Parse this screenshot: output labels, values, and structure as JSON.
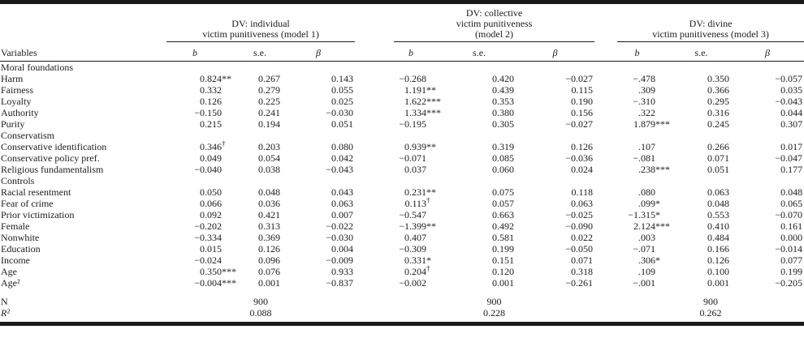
{
  "table": {
    "variables_header": "Variables",
    "groups": [
      {
        "title": "DV: individual\nvictim punitiveness (model 1)"
      },
      {
        "title": "DV: collective\nvictim punitiveness\n(model 2)"
      },
      {
        "title": "DV: divine\nvictim punitiveness (model 3)"
      }
    ],
    "stat_headers": [
      "b",
      "s.e.",
      "β"
    ],
    "rows": [
      {
        "type": "section",
        "label": "Moral foundations"
      },
      {
        "type": "data",
        "label": "Harm",
        "cells": [
          "0.824**",
          "0.267",
          "0.143",
          "−0.268",
          "0.420",
          "−0.027",
          "−.478",
          "0.350",
          "−0.057"
        ]
      },
      {
        "type": "data",
        "label": "Fairness",
        "cells": [
          "0.332",
          "0.279",
          "0.055",
          "1.191**",
          "0.439",
          "0.115",
          ".309",
          "0.366",
          "0.035"
        ]
      },
      {
        "type": "data",
        "label": "Loyalty",
        "cells": [
          "0.126",
          "0.225",
          "0.025",
          "1.622***",
          "0.353",
          "0.190",
          "−.310",
          "0.295",
          "−0.043"
        ]
      },
      {
        "type": "data",
        "label": "Authority",
        "cells": [
          "−0.150",
          "0.241",
          "−0.030",
          "1.334***",
          "0.380",
          "0.156",
          ".322",
          "0.316",
          "0.044"
        ]
      },
      {
        "type": "data",
        "label": "Purity",
        "cells": [
          "0.215",
          "0.194",
          "0.051",
          "−0.195",
          "0.305",
          "−0.027",
          "1.879***",
          "0.245",
          "0.307"
        ]
      },
      {
        "type": "section",
        "label": "Conservatism"
      },
      {
        "type": "data",
        "label": "Conservative identification",
        "cells": [
          "0.346†",
          "0.203",
          "0.080",
          "0.939**",
          "0.319",
          "0.126",
          ".107",
          "0.266",
          "0.017"
        ]
      },
      {
        "type": "data",
        "label": "Conservative policy pref.",
        "cells": [
          "0.049",
          "0.054",
          "0.042",
          "−0.071",
          "0.085",
          "−0.036",
          "−.081",
          "0.071",
          "−0.047"
        ]
      },
      {
        "type": "data",
        "label": "Religious fundamentalism",
        "cells": [
          "−0.040",
          "0.038",
          "−0.043",
          "0.037",
          "0.060",
          "0.024",
          ".238***",
          "0.051",
          "0.177"
        ]
      },
      {
        "type": "section",
        "label": "Controls"
      },
      {
        "type": "data",
        "label": "Racial resentment",
        "cells": [
          "0.050",
          "0.048",
          "0.043",
          "0.231**",
          "0.075",
          "0.118",
          ".080",
          "0.063",
          "0.048"
        ]
      },
      {
        "type": "data",
        "label": "Fear of crime",
        "cells": [
          "0.066",
          "0.036",
          "0.063",
          "0.113†",
          "0.057",
          "0.063",
          ".099*",
          "0.048",
          "0.065"
        ]
      },
      {
        "type": "data",
        "label": "Prior victimization",
        "cells": [
          "0.092",
          "0.421",
          "0.007",
          "−0.547",
          "0.663",
          "−0.025",
          "−1.315*",
          "0.553",
          "−0.070"
        ]
      },
      {
        "type": "data",
        "label": "Female",
        "cells": [
          "−0.202",
          "0.313",
          "−0.022",
          "−1.399**",
          "0.492",
          "−0.090",
          "2.124***",
          "0.410",
          "0.161"
        ]
      },
      {
        "type": "data",
        "label": "Nonwhite",
        "cells": [
          "−0.334",
          "0.369",
          "−0.030",
          "0.407",
          "0.581",
          "0.022",
          ".003",
          "0.484",
          "0.000"
        ]
      },
      {
        "type": "data",
        "label": "Education",
        "cells": [
          "0.015",
          "0.126",
          "0.004",
          "−0.309",
          "0.199",
          "−0.050",
          "−.071",
          "0.166",
          "−0.014"
        ]
      },
      {
        "type": "data",
        "label": "Income",
        "cells": [
          "−0.024",
          "0.096",
          "−0.009",
          "0.331*",
          "0.151",
          "0.071",
          ".306*",
          "0.126",
          "0.077"
        ]
      },
      {
        "type": "data",
        "label": "Age",
        "cells": [
          "0.350***",
          "0.076",
          "0.933",
          "0.204†",
          "0.120",
          "0.318",
          ".109",
          "0.100",
          "0.199"
        ]
      },
      {
        "type": "data",
        "label": "Age²",
        "cells": [
          "−0.004***",
          "0.001",
          "−0.837",
          "−0.002",
          "0.001",
          "−0.261",
          "−.001",
          "0.001",
          "−0.205"
        ]
      }
    ],
    "footer_rows": [
      {
        "label": "N",
        "italic_label": false,
        "values": [
          "900",
          "900",
          "900"
        ]
      },
      {
        "label": "R²",
        "italic_label": true,
        "values": [
          "0.088",
          "0.228",
          "0.262"
        ]
      }
    ]
  }
}
